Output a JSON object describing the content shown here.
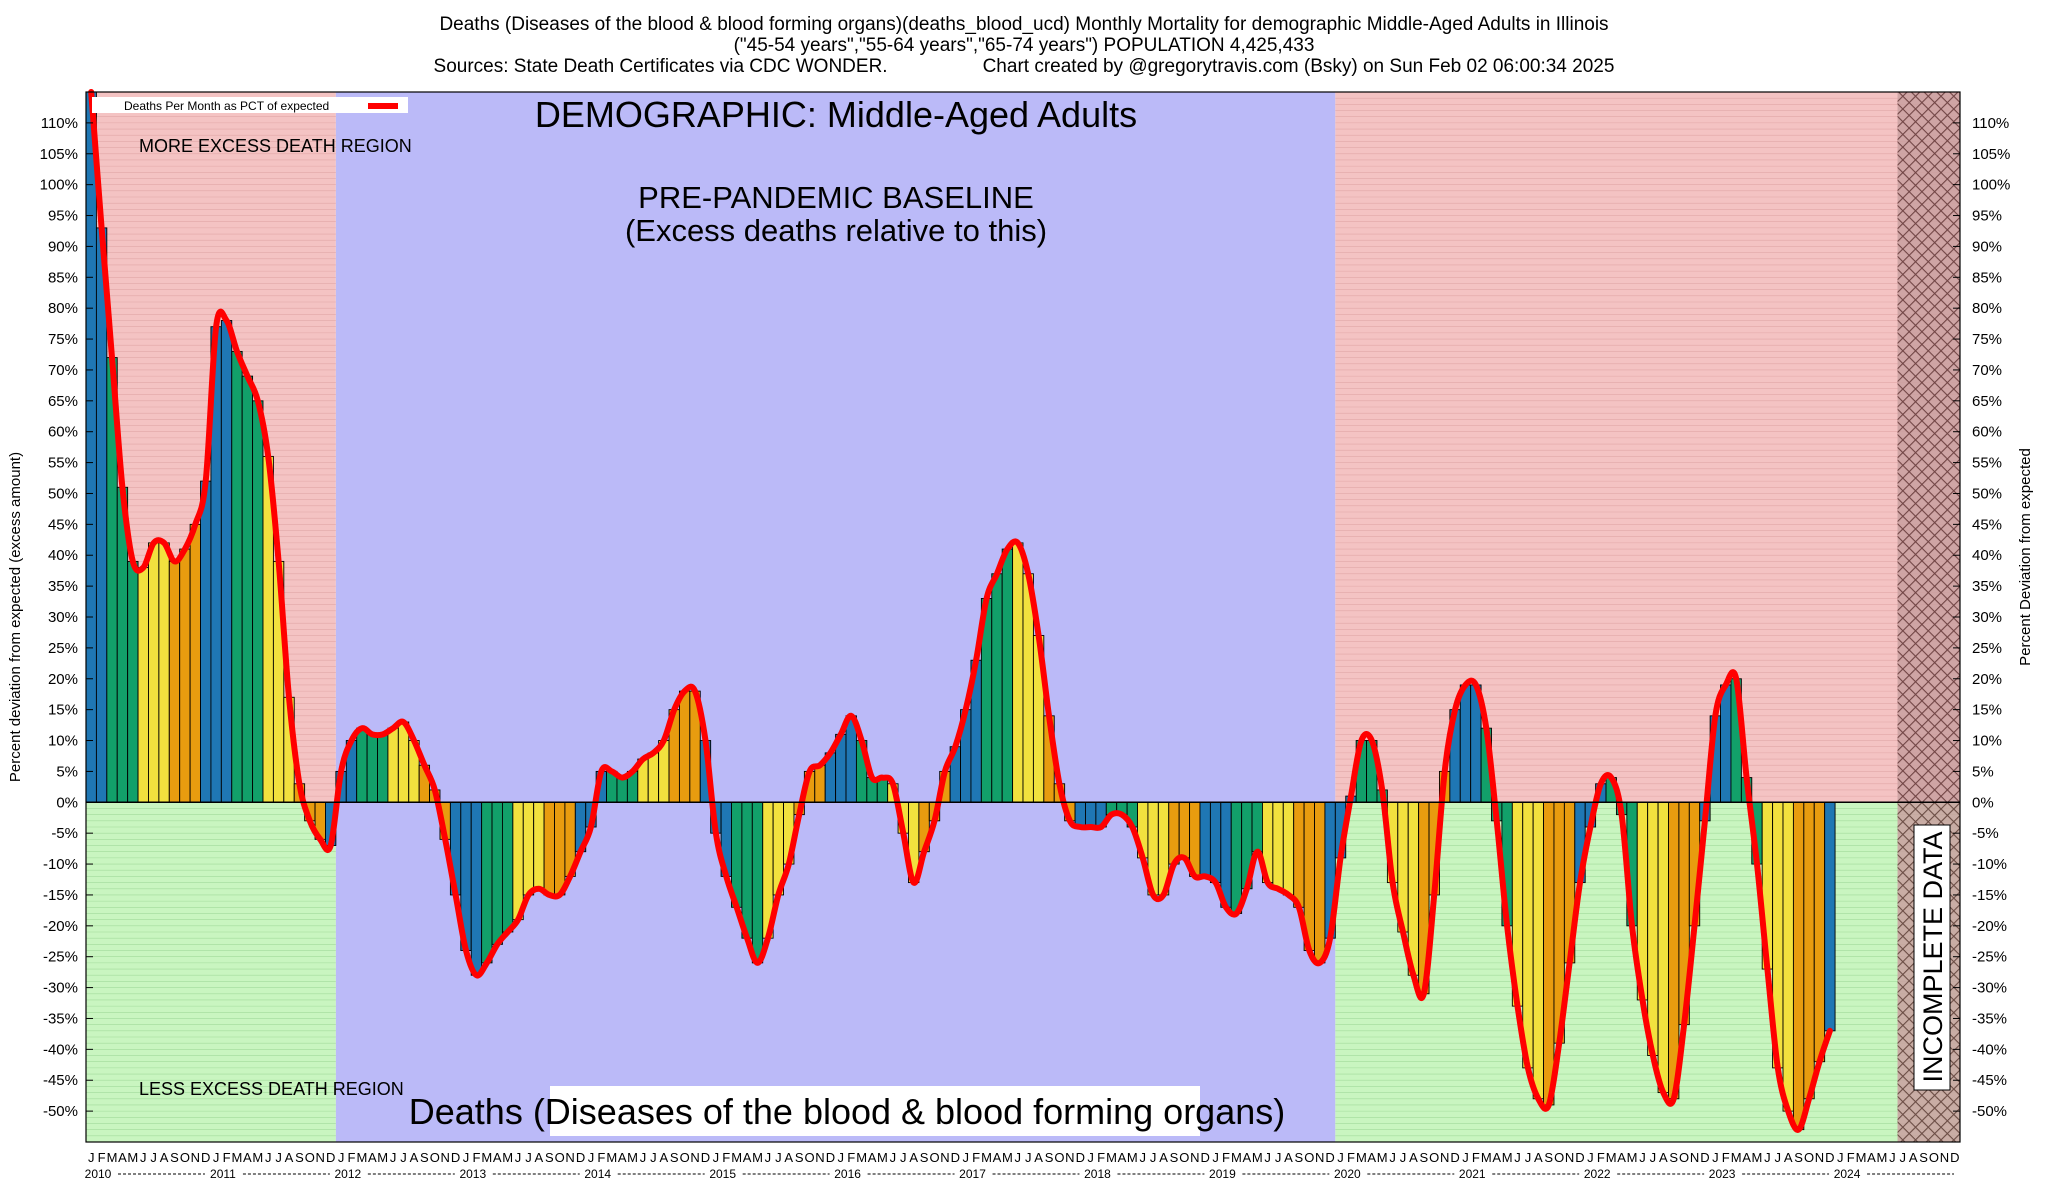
{
  "header": {
    "line1": "Deaths (Diseases of the blood & blood forming organs)(deaths_blood_ucd) Monthly Mortality for demographic Middle-Aged Adults in Illinois",
    "line2": "(\"45-54 years\",\"55-64 years\",\"65-74 years\") POPULATION 4,425,433",
    "line3": "Sources: State Death Certificates via CDC WONDER.                  Chart created by @gregorytravis.com (Bsky) on Sun Feb 02 06:00:34 2025"
  },
  "chart_data": {
    "type": "bar",
    "title": "DEMOGRAPHIC: Middle-Aged Adults",
    "subtitle": "Deaths (Diseases of the blood & blood forming organs)",
    "ylabel": "Percent deviation from expected (excess amount)",
    "ylabel_right": "Percent Deviation from expected",
    "ylim": [
      -55,
      115
    ],
    "yticks": [
      110,
      105,
      100,
      95,
      90,
      85,
      80,
      75,
      70,
      65,
      60,
      55,
      50,
      45,
      40,
      35,
      30,
      25,
      20,
      15,
      10,
      5,
      0,
      -5,
      -10,
      -15,
      -20,
      -25,
      -30,
      -35,
      -40,
      -45,
      -50
    ],
    "legend": {
      "label": "Deaths Per Month as PCT of expected",
      "placement": "top-left",
      "color": "#ff0000"
    },
    "grid": true,
    "annotations": {
      "more_excess": "MORE EXCESS DEATH REGION",
      "less_excess": "LESS EXCESS DEATH REGION",
      "baseline_line1": "PRE-PANDEMIC BASELINE",
      "baseline_line2": "(Excess deaths relative to this)",
      "incomplete": "INCOMPLETE DATA"
    },
    "month_letters": [
      "J",
      "F",
      "M",
      "A",
      "M",
      "J",
      "J",
      "A",
      "S",
      "O",
      "N",
      "D"
    ],
    "years": [
      "2010",
      "2011",
      "2012",
      "2013",
      "2014",
      "2015",
      "2016",
      "2017",
      "2018",
      "2019",
      "2020",
      "2021",
      "2022",
      "2023",
      "2024"
    ],
    "start": "2010-01",
    "baseline_period": [
      "2012-01",
      "2019-12"
    ],
    "incomplete_from": "2024-07",
    "season_colors": {
      "winter": "#1f77b4",
      "spring": "#12a06a",
      "summer": "#f2e13e",
      "autumn": "#e89c0f"
    },
    "region_colors": {
      "above": "#f4c3c3",
      "below": "#c9f5c0",
      "baseline": "#bbbaf8",
      "line": "#ff0000"
    },
    "values": [
      115,
      93,
      72,
      51,
      39,
      38,
      42,
      42,
      39,
      41,
      45,
      52,
      77,
      78,
      73,
      69,
      65,
      56,
      39,
      17,
      3,
      -3,
      -6,
      -7,
      5,
      10,
      12,
      11,
      11,
      12,
      13,
      10,
      6,
      2,
      -6,
      -15,
      -24,
      -28,
      -26,
      -23,
      -21,
      -19,
      -15,
      -14,
      -15,
      -15,
      -12,
      -8,
      -4,
      5,
      5,
      4,
      5,
      7,
      8,
      10,
      15,
      18,
      18,
      10,
      -5,
      -12,
      -17,
      -22,
      -26,
      -22,
      -15,
      -10,
      -2,
      5,
      6,
      8,
      11,
      14,
      10,
      4,
      4,
      3,
      -5,
      -13,
      -8,
      -3,
      5,
      9,
      15,
      23,
      33,
      37,
      41,
      42,
      37,
      27,
      14,
      3,
      -3,
      -4,
      -4,
      -4,
      -2,
      -2,
      -4,
      -9,
      -15,
      -15,
      -10,
      -9,
      -12,
      -12,
      -13,
      -17,
      -18,
      -14,
      -8,
      -13,
      -14,
      -15,
      -17,
      -24,
      -26,
      -22,
      -9,
      1,
      10,
      10,
      2,
      -13,
      -21,
      -28,
      -31,
      -15,
      5,
      15,
      19,
      19,
      12,
      -3,
      -20,
      -33,
      -43,
      -48,
      -49,
      -39,
      -26,
      -13,
      -4,
      3,
      4,
      -2,
      -20,
      -32,
      -41,
      -47,
      -48,
      -36,
      -20,
      -3,
      14,
      19,
      20,
      4,
      -10,
      -27,
      -43,
      -50,
      -53,
      -48,
      -42,
      -37
    ]
  }
}
